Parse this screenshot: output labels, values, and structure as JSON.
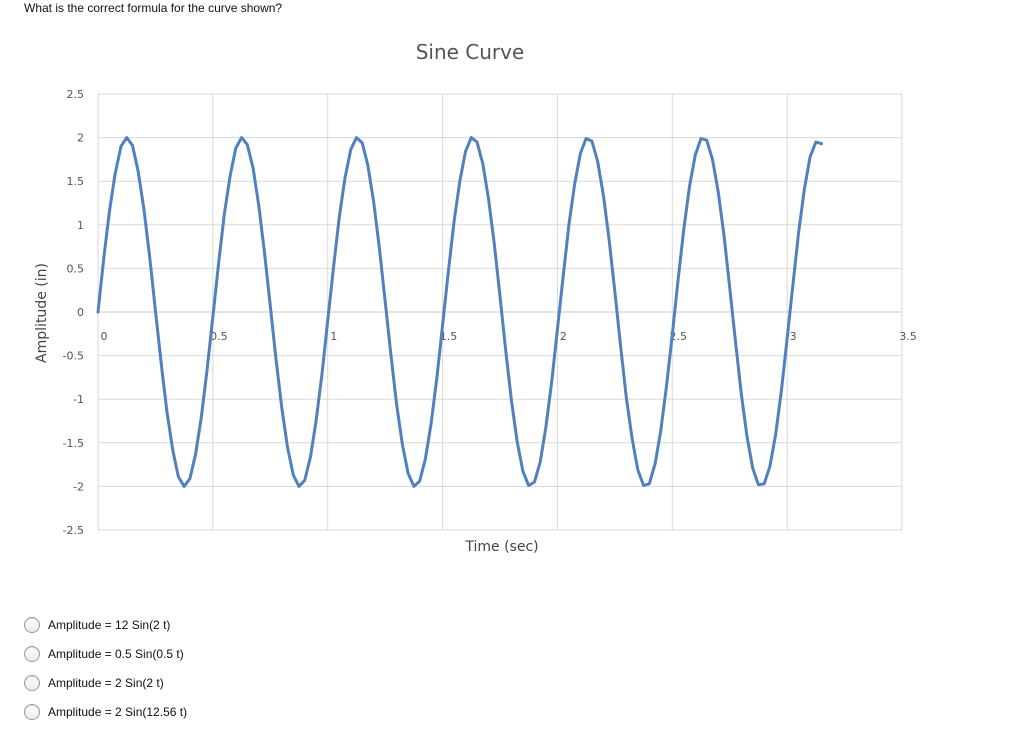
{
  "question": "What is the correct formula for the curve shown?",
  "chart_data": {
    "type": "line",
    "title": "Sine Curve",
    "xlabel": "Time (sec)",
    "ylabel": "Amplitude (in)",
    "xlim": [
      0,
      3.5
    ],
    "ylim": [
      -2.5,
      2.5
    ],
    "x_ticks": [
      "0",
      "0.5",
      "1",
      "1.5",
      "2",
      "2.5",
      "3",
      "3.5"
    ],
    "y_ticks": [
      "2.5",
      "2",
      "1.5",
      "1",
      "0.5",
      "0",
      "-0.5",
      "-1",
      "-1.5",
      "-2",
      "-2.5"
    ],
    "grid": true,
    "series": [
      {
        "color": "#4f81bd",
        "x": [
          0,
          0.025,
          0.05,
          0.075,
          0.1,
          0.125,
          0.15,
          0.175,
          0.2,
          0.225,
          0.25,
          0.275,
          0.3,
          0.325,
          0.35,
          0.375,
          0.4,
          0.425,
          0.45,
          0.475,
          0.5,
          0.525,
          0.55,
          0.575,
          0.6,
          0.625,
          0.65,
          0.675,
          0.7,
          0.725,
          0.75,
          0.775,
          0.8,
          0.825,
          0.85,
          0.875,
          0.9,
          0.925,
          0.95,
          0.975,
          1,
          1.025,
          1.05,
          1.075,
          1.1,
          1.125,
          1.15,
          1.175,
          1.2,
          1.225,
          1.25,
          1.275,
          1.3,
          1.325,
          1.35,
          1.375,
          1.4,
          1.425,
          1.45,
          1.475,
          1.5,
          1.525,
          1.55,
          1.575,
          1.6,
          1.625,
          1.65,
          1.675,
          1.7,
          1.725,
          1.75,
          1.775,
          1.8,
          1.825,
          1.85,
          1.875,
          1.9,
          1.925,
          1.95,
          1.975,
          2,
          2.025,
          2.05,
          2.075,
          2.1,
          2.125,
          2.15,
          2.175,
          2.2,
          2.225,
          2.25,
          2.275,
          2.3,
          2.325,
          2.35,
          2.375,
          2.4,
          2.425,
          2.45,
          2.475,
          2.5,
          2.525,
          2.55,
          2.575,
          2.6,
          2.625,
          2.65,
          2.675,
          2.7,
          2.725,
          2.75,
          2.775,
          2.8,
          2.825,
          2.85,
          2.875,
          2.9,
          2.925,
          2.95,
          2.975,
          3,
          3.025,
          3.05,
          3.075,
          3.1,
          3.125,
          3.15
        ],
        "y": [
          0,
          0.61,
          1.16,
          1.59,
          1.9,
          2.0,
          1.91,
          1.61,
          1.18,
          0.63,
          0.02,
          -0.59,
          -1.14,
          -1.58,
          -1.89,
          -2.0,
          -1.91,
          -1.63,
          -1.2,
          -0.66,
          -0.05,
          0.56,
          1.12,
          1.56,
          1.88,
          2.0,
          1.92,
          1.65,
          1.22,
          0.68,
          0.07,
          -0.54,
          -1.1,
          -1.55,
          -1.87,
          -2.0,
          -1.93,
          -1.66,
          -1.24,
          -0.71,
          -0.1,
          0.51,
          1.08,
          1.53,
          1.86,
          2.0,
          1.94,
          1.68,
          1.26,
          0.73,
          0.13,
          -0.49,
          -1.06,
          -1.52,
          -1.85,
          -2.0,
          -1.94,
          -1.69,
          -1.28,
          -0.76,
          -0.15,
          0.46,
          1.04,
          1.5,
          1.84,
          2.0,
          1.95,
          1.7,
          1.3,
          0.78,
          0.18,
          -0.44,
          -1.02,
          -1.49,
          -1.83,
          -1.99,
          -1.95,
          -1.72,
          -1.32,
          -0.8,
          -0.2,
          0.41,
          1.0,
          1.47,
          1.82,
          1.99,
          1.96,
          1.73,
          1.34,
          0.83,
          0.23,
          -0.39,
          -0.98,
          -1.45,
          -1.81,
          -1.99,
          -1.97,
          -1.74,
          -1.36,
          -0.85,
          -0.26,
          0.36,
          0.95,
          1.44,
          1.8,
          1.99,
          1.97,
          1.75,
          1.38,
          0.88,
          0.28,
          -0.34,
          -0.93,
          -1.42,
          -1.79,
          -1.98,
          -1.97,
          -1.77,
          -1.4,
          -0.9,
          -0.31,
          0.31,
          0.91,
          1.41,
          1.78,
          1.95,
          1.93
        ]
      }
    ]
  },
  "options": [
    {
      "label": "Amplitude = 12 Sin(2 t)"
    },
    {
      "label": "Amplitude = 0.5 Sin(0.5 t)"
    },
    {
      "label": "Amplitude = 2 Sin(2 t)"
    },
    {
      "label": "Amplitude = 2 Sin(12.56 t)"
    }
  ]
}
